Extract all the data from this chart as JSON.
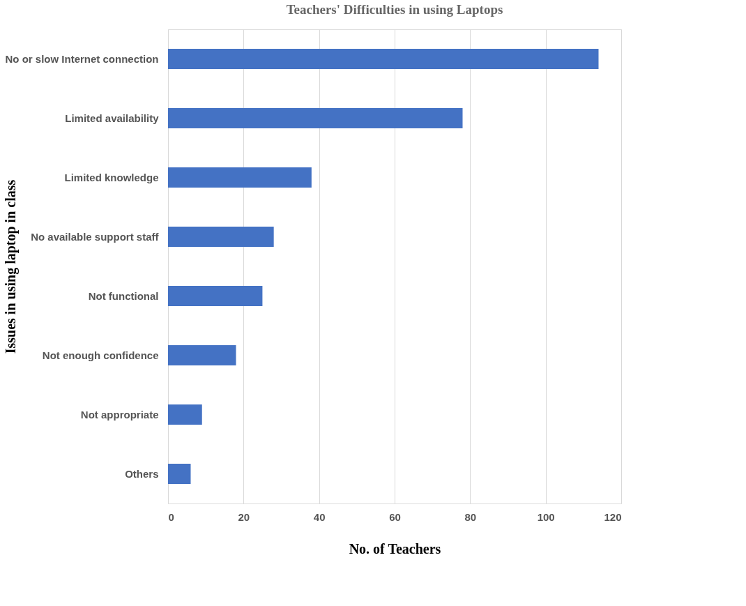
{
  "chart_data": {
    "type": "bar",
    "orientation": "horizontal",
    "title": "Teachers' Difficulties in using Laptops",
    "xlabel": "No. of Teachers",
    "ylabel": "Issues in using laptop in class",
    "categories": [
      "No or slow Internet connection",
      "Limited availability",
      "Limited knowledge",
      "No available support staff",
      "Not functional",
      "Not enough confidence",
      "Not appropriate",
      "Others"
    ],
    "values": [
      114,
      78,
      38,
      28,
      25,
      18,
      9,
      6
    ],
    "color": "#4472c4",
    "xlim": [
      0,
      120
    ],
    "xticks": [
      0,
      20,
      40,
      60,
      80,
      100,
      120
    ],
    "grid": "x"
  }
}
